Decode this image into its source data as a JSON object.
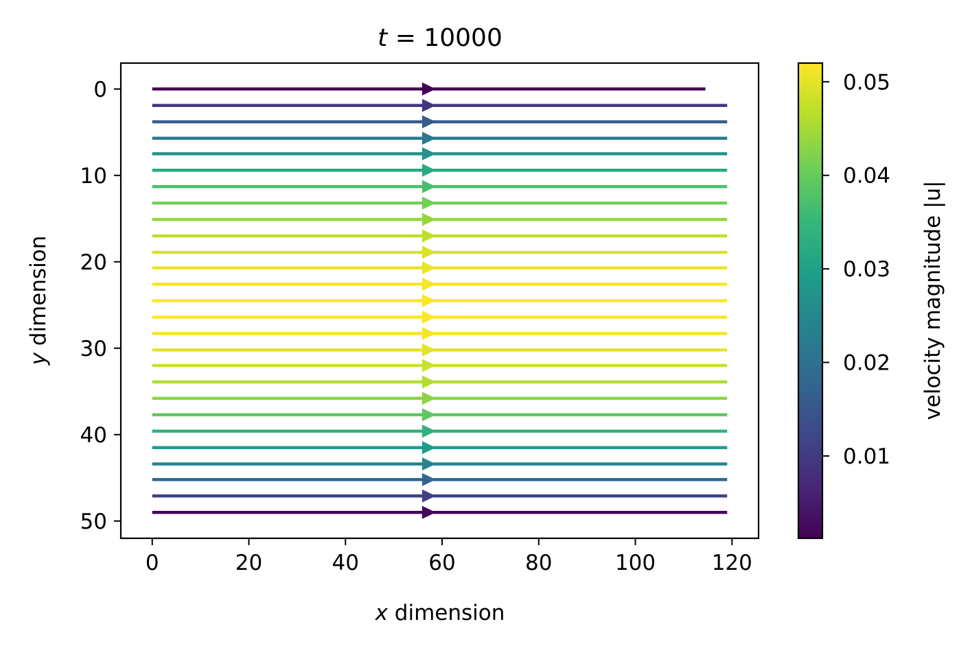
{
  "chart_data": {
    "type": "streamplot",
    "title_var": "t",
    "title_eq": " = ",
    "title_value": "10000",
    "xlabel_var": "x",
    "xlabel_rest": " dimension",
    "ylabel_var": "y",
    "ylabel_rest": " dimension",
    "xlim": [
      -6.5,
      125.5
    ],
    "ylim_inverted": [
      52,
      -3
    ],
    "x_ticks": [
      0,
      20,
      40,
      60,
      80,
      100,
      120
    ],
    "y_ticks": [
      0,
      10,
      20,
      30,
      40,
      50
    ],
    "arrow_x": 57,
    "x_start": 0,
    "x_end": 119,
    "streamlines": [
      {
        "y": 0.0,
        "speed": 0.001,
        "x_end": 114.5
      },
      {
        "y": 1.9,
        "speed": 0.009
      },
      {
        "y": 3.8,
        "speed": 0.016
      },
      {
        "y": 5.7,
        "speed": 0.022
      },
      {
        "y": 7.5,
        "speed": 0.027
      },
      {
        "y": 9.4,
        "speed": 0.032
      },
      {
        "y": 11.3,
        "speed": 0.037
      },
      {
        "y": 13.2,
        "speed": 0.041
      },
      {
        "y": 15.1,
        "speed": 0.044
      },
      {
        "y": 17.0,
        "speed": 0.047
      },
      {
        "y": 18.9,
        "speed": 0.049
      },
      {
        "y": 20.7,
        "speed": 0.0505
      },
      {
        "y": 22.6,
        "speed": 0.0515
      },
      {
        "y": 24.5,
        "speed": 0.052
      },
      {
        "y": 26.4,
        "speed": 0.052
      },
      {
        "y": 28.3,
        "speed": 0.0515
      },
      {
        "y": 30.2,
        "speed": 0.05
      },
      {
        "y": 32.0,
        "speed": 0.048
      },
      {
        "y": 33.9,
        "speed": 0.046
      },
      {
        "y": 35.8,
        "speed": 0.043
      },
      {
        "y": 37.7,
        "speed": 0.039
      },
      {
        "y": 39.6,
        "speed": 0.034
      },
      {
        "y": 41.5,
        "speed": 0.029
      },
      {
        "y": 43.4,
        "speed": 0.024
      },
      {
        "y": 45.2,
        "speed": 0.018
      },
      {
        "y": 47.1,
        "speed": 0.011
      },
      {
        "y": 49.0,
        "speed": 0.002
      }
    ],
    "colorbar": {
      "label": "velocity magnitude |u|",
      "vmin": 0.0012,
      "vmax": 0.052,
      "ticks": [
        0.01,
        0.02,
        0.03,
        0.04,
        0.05
      ],
      "tick_labels": [
        "0.01",
        "0.02",
        "0.03",
        "0.04",
        "0.05"
      ],
      "colormap": [
        "#440154",
        "#482878",
        "#3e4989",
        "#31688e",
        "#26828e",
        "#1f9e89",
        "#35b779",
        "#6ece58",
        "#b5de2b",
        "#fde725"
      ]
    }
  }
}
